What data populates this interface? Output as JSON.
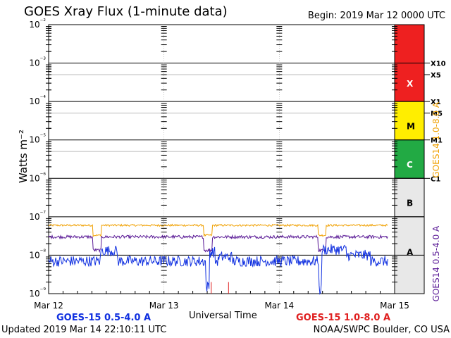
{
  "title": "GOES Xray Flux (1-minute data)",
  "begin": "Begin:  2019 Mar 12 0000 UTC",
  "updated": "Updated 2019 Mar 14 22:10:11 UTC",
  "credit": "NOAA/SWPC Boulder, CO USA",
  "colors": {
    "goes14_long": "#f0a000",
    "goes14_short": "#5a1a96",
    "goes15_short": "#1030e0",
    "goes15_long": "#e02020",
    "band_x": "#ee2020",
    "band_m": "#ffee00",
    "band_c": "#22aa44",
    "band_ab": "#e8e8e8"
  },
  "chart_data": {
    "type": "line",
    "title": "GOES Xray Flux (1-minute data)",
    "xlabel": "Universal Time",
    "ylabel": "Watts m⁻²",
    "ylim": [
      1e-09,
      0.01
    ],
    "yscale": "log",
    "x_range": [
      "2019-03-12 00:00",
      "2019-03-15 00:00"
    ],
    "x_ticks": [
      "Mar 12",
      "Mar 13",
      "Mar 14",
      "Mar 15"
    ],
    "y_ticks": [
      "10⁻⁹",
      "10⁻⁸",
      "10⁻⁷",
      "10⁻⁶",
      "10⁻⁵",
      "10⁻⁴",
      "10⁻³",
      "10⁻²"
    ],
    "flare_class_labels": [
      {
        "label": "X10",
        "level": 0.001
      },
      {
        "label": "X5",
        "level": 0.0005
      },
      {
        "label": "X1",
        "level": 0.0001
      },
      {
        "label": "M5",
        "level": 5e-05
      },
      {
        "label": "M1",
        "level": 1e-05
      },
      {
        "label": "C1",
        "level": 1e-06
      }
    ],
    "class_bands": [
      "X",
      "M",
      "C",
      "B",
      "A"
    ],
    "right_axis_labels": [
      "GOES14 1.0-8.0 A",
      "GOES14 0.5-4.0 A"
    ],
    "series": [
      {
        "name": "GOES14 1.0-8.0 A",
        "approx_level": 6e-08
      },
      {
        "name": "GOES14 0.5-4.0 A",
        "approx_level": 3e-08
      },
      {
        "name": "GOES-15 0.5-4.0 A",
        "approx_level": 7e-09
      },
      {
        "name": "GOES-15 1.0-8.0 A",
        "note": "brief spikes"
      }
    ],
    "legend": [
      "GOES-15 0.5-4.0 A",
      "GOES-15 1.0-8.0 A"
    ],
    "grid": true
  }
}
